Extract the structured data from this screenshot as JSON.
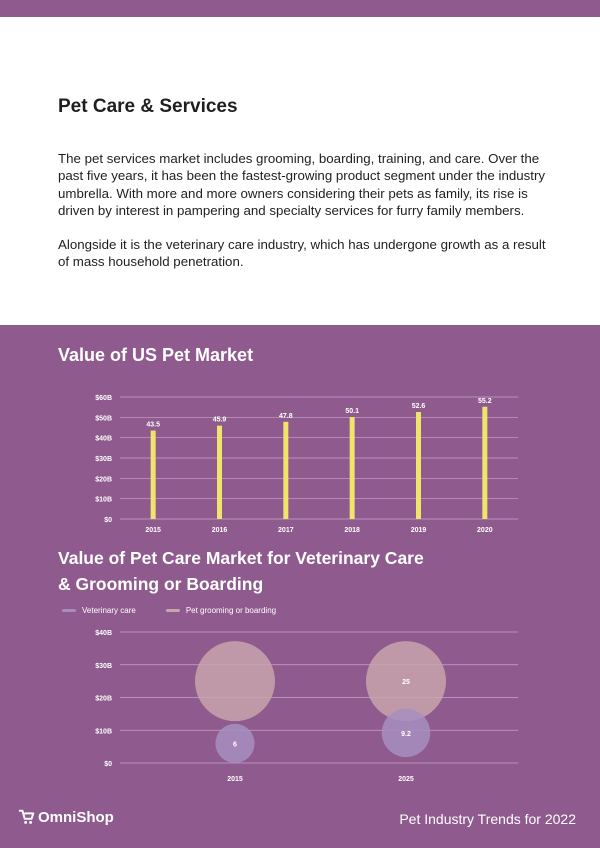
{
  "section": {
    "title": "Pet Care & Services",
    "paragraphs": [
      "The pet services market includes grooming, boarding, training, and care. Over the past five years, it has been the fastest-growing product segment under the industry umbrella. With more and more owners considering their pets as family, its rise is driven by interest in pampering and specialty services for furry family members.",
      "Alongside it is the veterinary care industry, which has undergone growth as a result of mass household penetration."
    ]
  },
  "chart_data": [
    {
      "type": "bar",
      "title": "Value of US Pet Market",
      "categories": [
        "2015",
        "2016",
        "2017",
        "2018",
        "2019",
        "2020"
      ],
      "values": [
        43.5,
        45.9,
        47.8,
        50.1,
        52.6,
        55.2
      ],
      "data_labels": [
        "43.5",
        "45.9",
        "47.8",
        "50.1",
        "52.6",
        "55.2"
      ],
      "y_ticks": [
        0,
        10,
        20,
        30,
        40,
        50,
        60
      ],
      "y_tick_labels": [
        "$0",
        "$10B",
        "$20B",
        "$30B",
        "$40B",
        "$50B",
        "$60B"
      ],
      "ylim": [
        0,
        60
      ],
      "grid": true,
      "bar_color": "#efe56c"
    },
    {
      "type": "scatter",
      "title": "Value of Pet Care Market for Veterinary Care & Grooming or Boarding",
      "categories": [
        "2015",
        "2025"
      ],
      "series": [
        {
          "name": "Veterinary care",
          "values": [
            6,
            9.2
          ],
          "labels": [
            "6",
            "9.2"
          ],
          "color": "#a68fc0"
        },
        {
          "name": "Pet grooming or boarding",
          "values": [
            25,
            25
          ],
          "labels": [
            "",
            "25"
          ],
          "color": "#c8a5ad"
        }
      ],
      "y_ticks": [
        0,
        10,
        20,
        30,
        40
      ],
      "y_tick_labels": [
        "$0",
        "$10B",
        "$20B",
        "$30B",
        "$40B"
      ],
      "ylim": [
        0,
        40
      ],
      "grid": true,
      "legend_position": "top-left"
    }
  ],
  "footer": {
    "logo_text": "OmniShop",
    "right_text": "Pet Industry Trends for 2022"
  },
  "colors": {
    "purple_background": "#8f5a8d",
    "text_dark": "#1f1f1f"
  }
}
